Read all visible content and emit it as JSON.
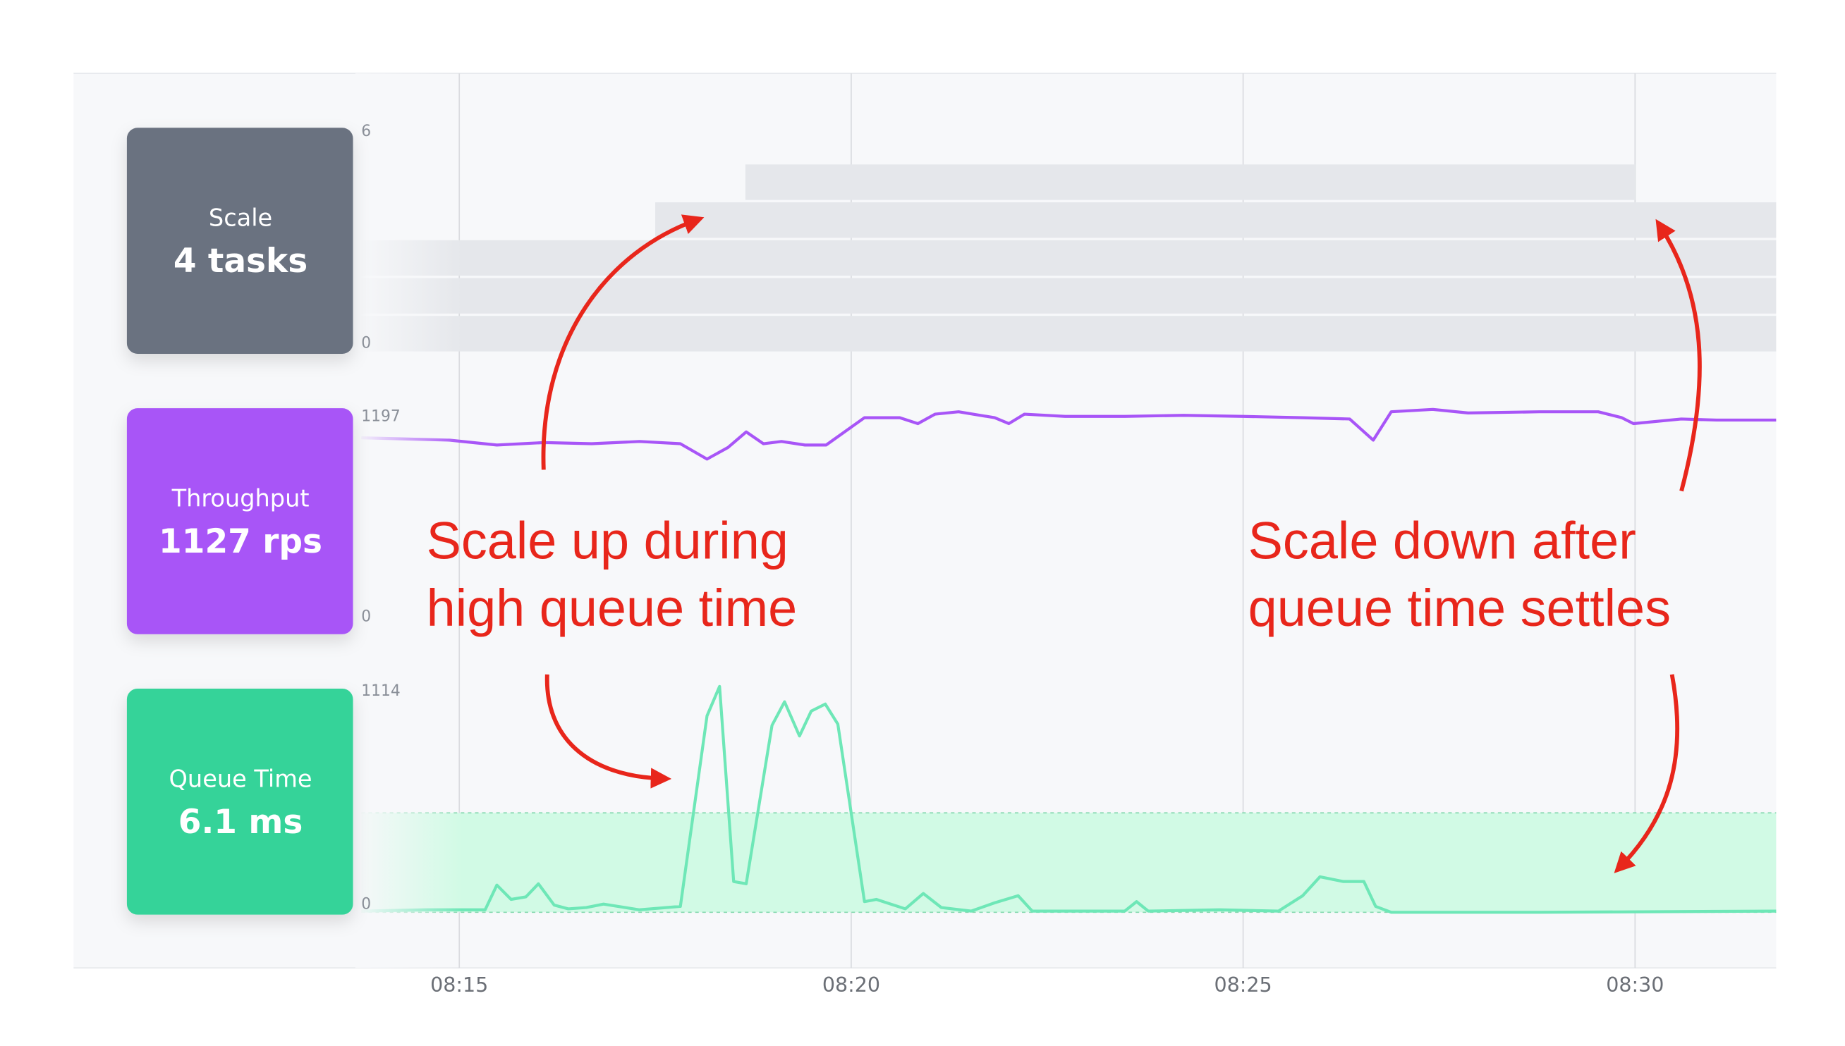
{
  "x_axis": {
    "xlim": [
      13.75,
      31.8
    ],
    "ticks": [
      {
        "value": 15,
        "label": "08:15"
      },
      {
        "value": 20,
        "label": "08:20"
      },
      {
        "value": 25,
        "label": "08:25"
      },
      {
        "value": 30,
        "label": "08:30"
      }
    ]
  },
  "panels": [
    {
      "type": "tasks",
      "title": "Scale",
      "value": "4 tasks",
      "color": "#6b7280",
      "bar_color": "#e5e7eb",
      "ylim": [
        0,
        6
      ],
      "yticks": [
        0,
        6
      ],
      "tasks": [
        {
          "start": 13.75,
          "end": 31.8
        },
        {
          "start": 13.75,
          "end": 31.8
        },
        {
          "start": 13.75,
          "end": 31.8
        },
        {
          "start": 17.5,
          "end": 31.8
        },
        {
          "start": 18.65,
          "end": 30.0
        }
      ]
    },
    {
      "type": "line",
      "title": "Throughput",
      "value": "1127 rps",
      "color": "#a855f7",
      "line_color": "#a855f7",
      "ylim": [
        0,
        1197
      ],
      "yticks": [
        0,
        1197
      ],
      "x": [
        13.75,
        14.27,
        14.88,
        15.48,
        16.09,
        16.69,
        17.3,
        17.82,
        18.16,
        18.43,
        18.66,
        18.88,
        19.11,
        19.41,
        19.68,
        20.17,
        20.62,
        20.85,
        21.07,
        21.37,
        21.83,
        22.01,
        22.21,
        22.73,
        23.49,
        24.24,
        25.0,
        25.76,
        26.36,
        26.66,
        26.89,
        27.42,
        27.87,
        28.78,
        29.53,
        29.83,
        29.98,
        30.59,
        31.04,
        31.8
      ],
      "values": [
        1039,
        1033,
        1026,
        999,
        1013,
        1006,
        1019,
        1006,
        921,
        986,
        1072,
        1006,
        1019,
        999,
        999,
        1151,
        1151,
        1118,
        1171,
        1184,
        1151,
        1118,
        1171,
        1158,
        1158,
        1164,
        1158,
        1151,
        1144,
        1026,
        1184,
        1197,
        1177,
        1184,
        1184,
        1151,
        1118,
        1144,
        1138,
        1138
      ]
    },
    {
      "type": "line",
      "title": "Queue Time",
      "value": "6.1 ms",
      "color": "#34d399",
      "line_color": "#6ee7b7",
      "band_color": "#d1fae5",
      "ylim": [
        0,
        1114
      ],
      "yticks": [
        0,
        1114
      ],
      "band": [
        0,
        485
      ],
      "x": [
        13.75,
        14.58,
        15.33,
        15.48,
        15.66,
        15.85,
        16.01,
        16.21,
        16.39,
        16.62,
        16.84,
        17.3,
        17.82,
        18.16,
        18.32,
        18.5,
        18.66,
        18.99,
        19.15,
        19.34,
        19.49,
        19.67,
        19.83,
        20.17,
        20.32,
        20.69,
        20.92,
        21.15,
        21.53,
        21.83,
        22.13,
        22.31,
        23.49,
        23.64,
        23.79,
        24.7,
        25.45,
        25.76,
        25.98,
        26.28,
        26.54,
        26.69,
        26.89,
        28.78,
        31.8
      ],
      "values": [
        6,
        12,
        12,
        133,
        63,
        75,
        139,
        35,
        17,
        23,
        40,
        12,
        29,
        958,
        1102,
        150,
        139,
        912,
        1027,
        860,
        981,
        1016,
        918,
        52,
        63,
        17,
        92,
        23,
        6,
        46,
        81,
        6,
        6,
        52,
        6,
        12,
        6,
        81,
        173,
        150,
        150,
        29,
        0,
        0,
        6
      ]
    }
  ],
  "annotations": [
    {
      "lines": [
        "Scale up during",
        "high queue time"
      ]
    },
    {
      "lines": [
        "Scale down after",
        "queue time settles"
      ]
    }
  ]
}
